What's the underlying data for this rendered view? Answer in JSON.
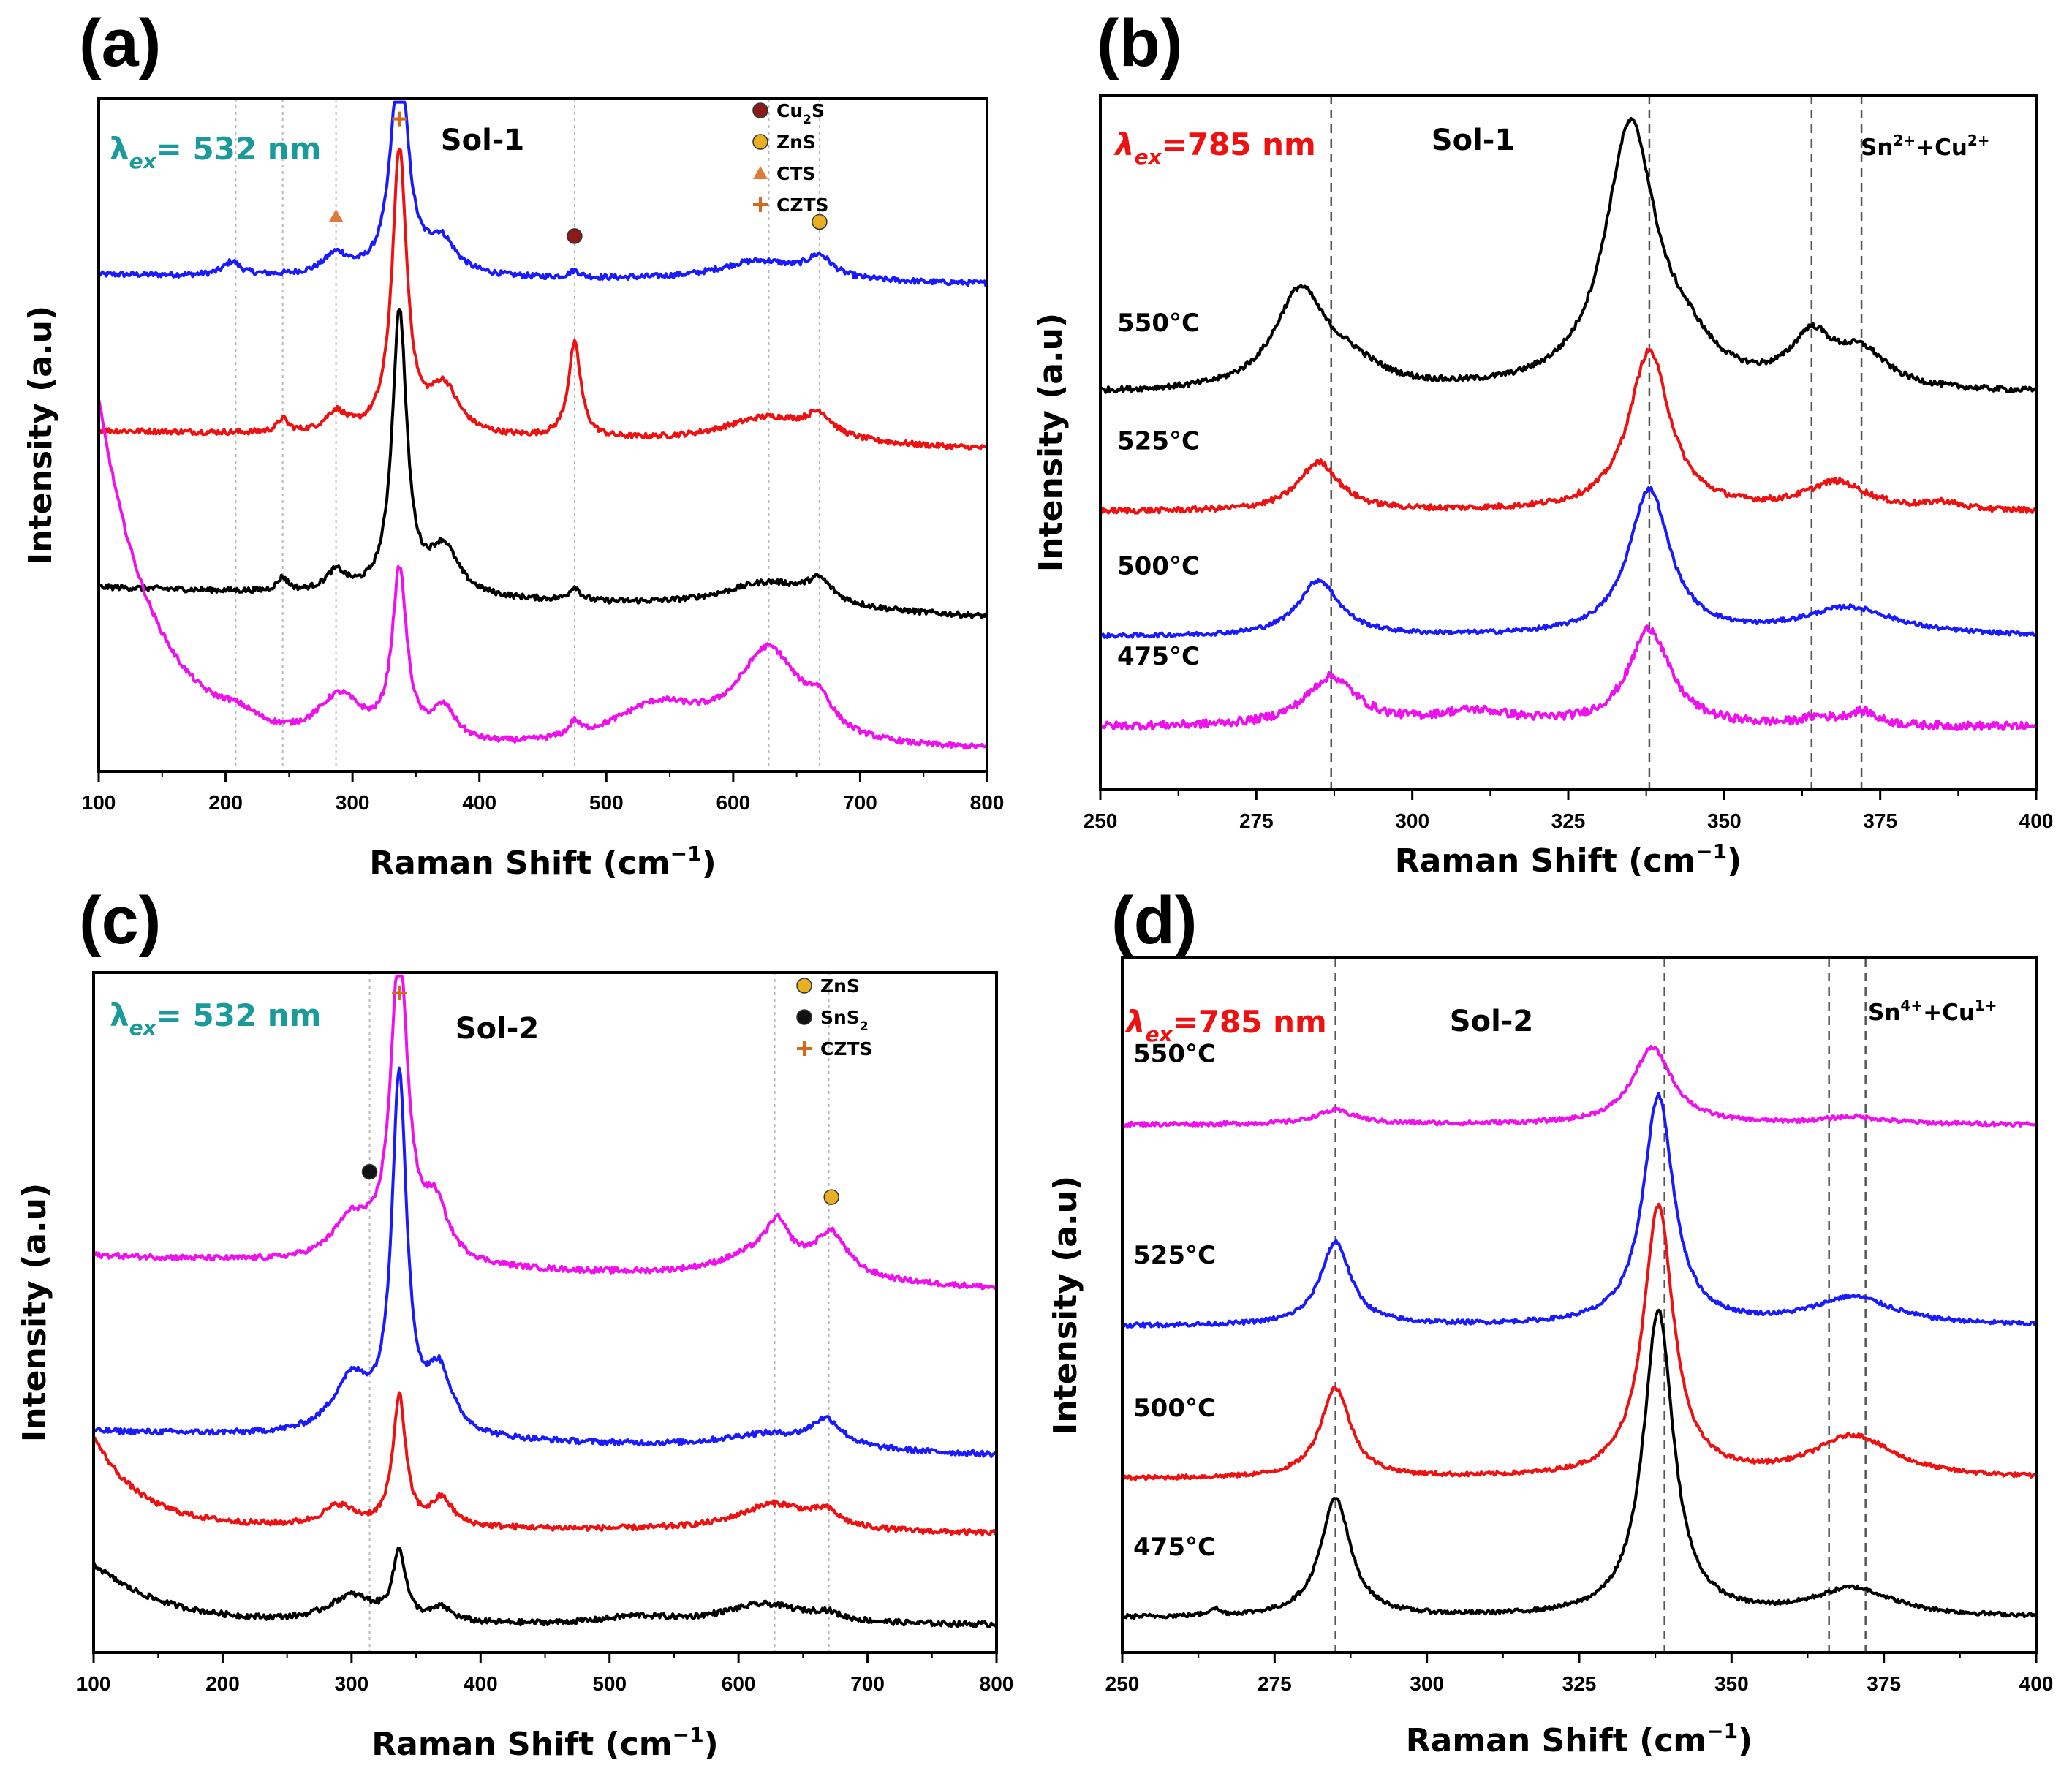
{
  "figure": {
    "colors": {
      "black": "#000000",
      "red": "#ee1111",
      "blue": "#1a1aff",
      "magenta": "#ee11ee",
      "teal": "#1a9a9a",
      "orange": "#e8b020",
      "cu2s_marker": "#8b1a1a",
      "cts_marker": "#e07a3c",
      "czts_marker": "#d2691e"
    }
  },
  "chart_data": [
    {
      "panel": "(a)",
      "type": "line",
      "title": "Sol-1",
      "excitation": {
        "symbol": "λ",
        "subscript": "ex",
        "value": "= 532 nm",
        "color": "#1a9a9a"
      },
      "xlabel": "Raman Shift (cm",
      "xlabel_sup": "−1",
      "xlabel_tail": ")",
      "ylabel": "Intensity (a.u)",
      "xlim": [
        100,
        800
      ],
      "xticks": [
        100,
        200,
        300,
        400,
        500,
        600,
        700,
        800
      ],
      "reference_lines": [
        208,
        245,
        287,
        475,
        628,
        668
      ],
      "legend": [
        {
          "label": "Cu",
          "sub": "2",
          "tail": "S",
          "marker": "circle",
          "color": "#8b1a1a"
        },
        {
          "label": "ZnS",
          "marker": "circle",
          "color": "#e8b020"
        },
        {
          "label": "CTS",
          "marker": "triangle",
          "color": "#e07a3c"
        },
        {
          "label": "CZTS",
          "marker": "star",
          "color": "#d2691e"
        }
      ],
      "peak_markers": [
        {
          "x": 287,
          "marker": "triangle",
          "color": "#e07a3c"
        },
        {
          "x": 337,
          "marker": "star",
          "color": "#d2691e"
        },
        {
          "x": 475,
          "marker": "circle",
          "color": "#8b1a1a"
        },
        {
          "x": 668,
          "marker": "circle",
          "color": "#e8b020"
        }
      ],
      "series": [
        {
          "color": "#1a1aff",
          "baseline": 0.74,
          "slope": -0.02,
          "noise": 0.004,
          "bumps": [
            [
              205,
              0.02,
              8
            ],
            [
              287,
              0.03,
              12
            ],
            [
              337,
              0.33,
              8
            ],
            [
              370,
              0.05,
              14
            ],
            [
              475,
              0.01,
              5
            ],
            [
              620,
              0.03,
              40
            ],
            [
              668,
              0.03,
              12
            ]
          ]
        },
        {
          "color": "#ee1111",
          "baseline": 0.51,
          "slope": -0.04,
          "noise": 0.004,
          "bumps": [
            [
              245,
              0.02,
              5
            ],
            [
              287,
              0.03,
              10
            ],
            [
              337,
              0.42,
              7
            ],
            [
              372,
              0.07,
              14
            ],
            [
              475,
              0.14,
              6
            ],
            [
              628,
              0.04,
              45
            ],
            [
              668,
              0.03,
              12
            ]
          ]
        },
        {
          "color": "#000000",
          "baseline": 0.28,
          "slope": -0.065,
          "noise": 0.004,
          "bumps": [
            [
              245,
              0.02,
              5
            ],
            [
              287,
              0.03,
              10
            ],
            [
              337,
              0.42,
              7
            ],
            [
              372,
              0.07,
              14
            ],
            [
              475,
              0.02,
              5
            ],
            [
              628,
              0.04,
              45
            ],
            [
              668,
              0.03,
              12
            ]
          ]
        },
        {
          "color": "#ee11ee",
          "baseline": 0.03,
          "slope": 0.0,
          "noise": 0.004,
          "decay": [
            0.52,
            45
          ],
          "bumps": [
            [
              210,
              0.02,
              20
            ],
            [
              290,
              0.07,
              22
            ],
            [
              337,
              0.25,
              7
            ],
            [
              372,
              0.05,
              12
            ],
            [
              475,
              0.02,
              5
            ],
            [
              540,
              0.06,
              45
            ],
            [
              628,
              0.14,
              30
            ],
            [
              668,
              0.04,
              12
            ]
          ]
        }
      ]
    },
    {
      "panel": "(b)",
      "type": "line",
      "title": "Sol-1",
      "excitation": {
        "symbol": "λ",
        "subscript": "ex",
        "value": "=785 nm",
        "color": "#ee1111"
      },
      "ion_label": {
        "a": "Sn",
        "a_sup": "2+",
        "mid": "+Cu",
        "b_sup": "2+"
      },
      "xlabel": "Raman Shift (cm",
      "xlabel_sup": "−1",
      "xlabel_tail": ")",
      "ylabel": "Intensity (a.u)",
      "xlim": [
        250,
        400
      ],
      "xticks": [
        250,
        275,
        300,
        325,
        350,
        375,
        400
      ],
      "reference_lines": [
        287,
        338,
        364,
        372
      ],
      "series": [
        {
          "label": "550°C",
          "color": "#000000",
          "baseline": 0.57,
          "slope": 0.0,
          "noise": 0.004,
          "bumps": [
            [
              282,
              0.14,
              5
            ],
            [
              290,
              0.03,
              6
            ],
            [
              335,
              0.38,
              5
            ],
            [
              344,
              0.04,
              5
            ],
            [
              364,
              0.07,
              4
            ],
            [
              372,
              0.05,
              5
            ]
          ]
        },
        {
          "label": "525°C",
          "color": "#ee1111",
          "baseline": 0.4,
          "slope": 0.0,
          "noise": 0.004,
          "bumps": [
            [
              285,
              0.07,
              4
            ],
            [
              338,
              0.23,
              4
            ],
            [
              368,
              0.04,
              6
            ],
            [
              385,
              0.01,
              3
            ]
          ]
        },
        {
          "label": "500°C",
          "color": "#1a1aff",
          "baseline": 0.22,
          "slope": 0.0,
          "noise": 0.003,
          "bumps": [
            [
              285,
              0.08,
              4
            ],
            [
              338,
              0.21,
              4
            ],
            [
              370,
              0.04,
              9
            ]
          ]
        },
        {
          "label": "475°C",
          "color": "#ee11ee",
          "baseline": 0.09,
          "slope": 0.0,
          "noise": 0.006,
          "bumps": [
            [
              287,
              0.07,
              5
            ],
            [
              310,
              0.02,
              8
            ],
            [
              338,
              0.14,
              4
            ],
            [
              365,
              0.01,
              3
            ],
            [
              372,
              0.02,
              3
            ]
          ]
        }
      ]
    },
    {
      "panel": "(c)",
      "type": "line",
      "title": "Sol-2",
      "excitation": {
        "symbol": "λ",
        "subscript": "ex",
        "value": "= 532 nm",
        "color": "#1a9a9a"
      },
      "xlabel": "Raman Shift (cm",
      "xlabel_sup": "−1",
      "xlabel_tail": ")",
      "ylabel": "Intensity (a.u)",
      "xlim": [
        100,
        800
      ],
      "xticks": [
        100,
        200,
        300,
        400,
        500,
        600,
        700,
        800
      ],
      "reference_lines": [
        314,
        628,
        670
      ],
      "legend": [
        {
          "label": "ZnS",
          "marker": "circle",
          "color": "#e8b020"
        },
        {
          "label": "SnS",
          "sub": "2",
          "tail": "",
          "marker": "circle",
          "color": "#111111"
        },
        {
          "label": "CZTS",
          "marker": "star",
          "color": "#d2691e"
        }
      ],
      "peak_markers": [
        {
          "x": 314,
          "marker": "circle",
          "color": "#111111"
        },
        {
          "x": 337,
          "marker": "star",
          "color": "#d2691e"
        },
        {
          "x": 672,
          "marker": "circle",
          "color": "#e8b020"
        }
      ],
      "series": [
        {
          "color": "#ee11ee",
          "baseline": 0.59,
          "slope": -0.07,
          "noise": 0.004,
          "bumps": [
            [
              300,
              0.06,
              18
            ],
            [
              337,
              0.45,
              8
            ],
            [
              365,
              0.08,
              12
            ],
            [
              630,
              0.05,
              10
            ],
            [
              620,
              0.04,
              40
            ],
            [
              672,
              0.06,
              15
            ]
          ]
        },
        {
          "color": "#1a1aff",
          "baseline": 0.33,
          "slope": -0.05,
          "noise": 0.004,
          "bumps": [
            [
              300,
              0.08,
              18
            ],
            [
              337,
              0.52,
              7
            ],
            [
              368,
              0.09,
              12
            ],
            [
              620,
              0.02,
              40
            ],
            [
              668,
              0.04,
              15
            ]
          ]
        },
        {
          "color": "#ee1111",
          "baseline": 0.19,
          "slope": -0.02,
          "noise": 0.004,
          "decay": [
            0.13,
            35
          ],
          "bumps": [
            [
              290,
              0.03,
              15
            ],
            [
              337,
              0.19,
              6
            ],
            [
              370,
              0.04,
              10
            ],
            [
              628,
              0.04,
              35
            ],
            [
              668,
              0.02,
              12
            ]
          ]
        },
        {
          "color": "#000000",
          "baseline": 0.04,
          "slope": 0.0,
          "noise": 0.004,
          "decay": [
            0.09,
            55
          ],
          "bumps": [
            [
              300,
              0.04,
              22
            ],
            [
              337,
              0.1,
              6
            ],
            [
              370,
              0.02,
              10
            ],
            [
              520,
              0.01,
              30
            ],
            [
              620,
              0.03,
              40
            ],
            [
              668,
              0.01,
              12
            ]
          ]
        }
      ]
    },
    {
      "panel": "(d)",
      "type": "line",
      "title": "Sol-2",
      "excitation": {
        "symbol": "λ",
        "subscript": "ex",
        "value": "=785 nm",
        "color": "#ee1111"
      },
      "ion_label": {
        "a": "Sn",
        "a_sup": "4+",
        "mid": "+Cu",
        "b_sup": "1+"
      },
      "xlabel": "Raman Shift (cm",
      "xlabel_sup": "−1",
      "xlabel_tail": ")",
      "ylabel": "Intensity (a.u)",
      "xlim": [
        250,
        400
      ],
      "xticks": [
        250,
        275,
        300,
        325,
        350,
        375,
        400
      ],
      "reference_lines": [
        285,
        339,
        366,
        372
      ],
      "series": [
        {
          "label": "550°C",
          "color": "#ee11ee",
          "baseline": 0.76,
          "slope": 0.0,
          "noise": 0.003,
          "bumps": [
            [
              285,
              0.02,
              4
            ],
            [
              337,
              0.11,
              4
            ],
            [
              370,
              0.01,
              6
            ]
          ]
        },
        {
          "label": "525°C",
          "color": "#1a1aff",
          "baseline": 0.47,
          "slope": 0.0,
          "noise": 0.003,
          "bumps": [
            [
              285,
              0.12,
              3
            ],
            [
              338,
              0.33,
              3
            ],
            [
              370,
              0.04,
              8
            ]
          ]
        },
        {
          "label": "500°C",
          "color": "#ee1111",
          "baseline": 0.25,
          "slope": 0.0,
          "noise": 0.003,
          "bumps": [
            [
              285,
              0.13,
              3
            ],
            [
              338,
              0.39,
              3
            ],
            [
              370,
              0.06,
              8
            ]
          ]
        },
        {
          "label": "475°C",
          "color": "#000000",
          "baseline": 0.05,
          "slope": 0.0,
          "noise": 0.003,
          "bumps": [
            [
              265,
              0.01,
              1
            ],
            [
              285,
              0.17,
              3
            ],
            [
              338,
              0.44,
              3
            ],
            [
              370,
              0.04,
              8
            ]
          ]
        }
      ]
    }
  ]
}
